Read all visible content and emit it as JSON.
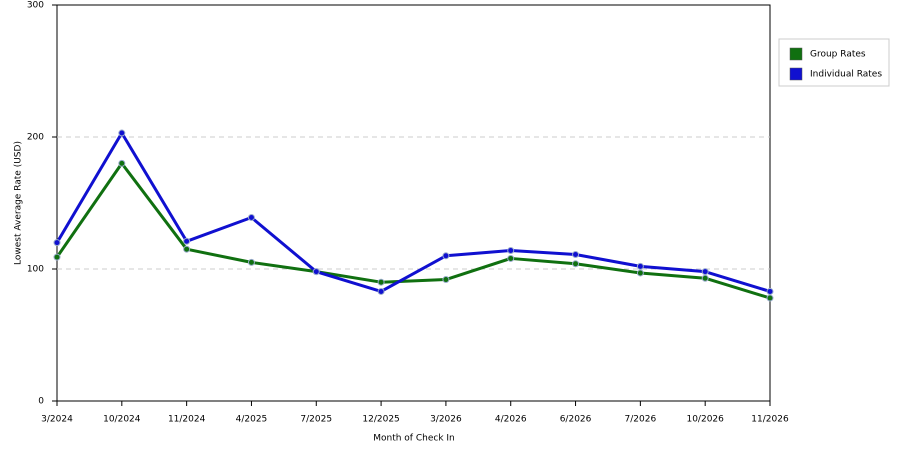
{
  "chart_data": {
    "type": "line",
    "x_label": "Month of Check In",
    "y_label": "Lowest Average Rate (USD)",
    "categories": [
      "3/2024",
      "10/2024",
      "11/2024",
      "4/2025",
      "7/2025",
      "12/2025",
      "3/2026",
      "4/2026",
      "6/2026",
      "7/2026",
      "10/2026",
      "11/2026"
    ],
    "series": [
      {
        "name": "Group Rates",
        "color": "#107010",
        "values": [
          109,
          180,
          115,
          105,
          98,
          90,
          92,
          108,
          104,
          97,
          93,
          78
        ]
      },
      {
        "name": "Individual Rates",
        "color": "#1010d0",
        "values": [
          120,
          203,
          121,
          139,
          98,
          83,
          110,
          114,
          111,
          102,
          98,
          83
        ]
      }
    ],
    "ylim": [
      0,
      300
    ],
    "yticks": [
      0,
      100,
      200,
      300
    ],
    "grid": true,
    "legend": "right"
  }
}
